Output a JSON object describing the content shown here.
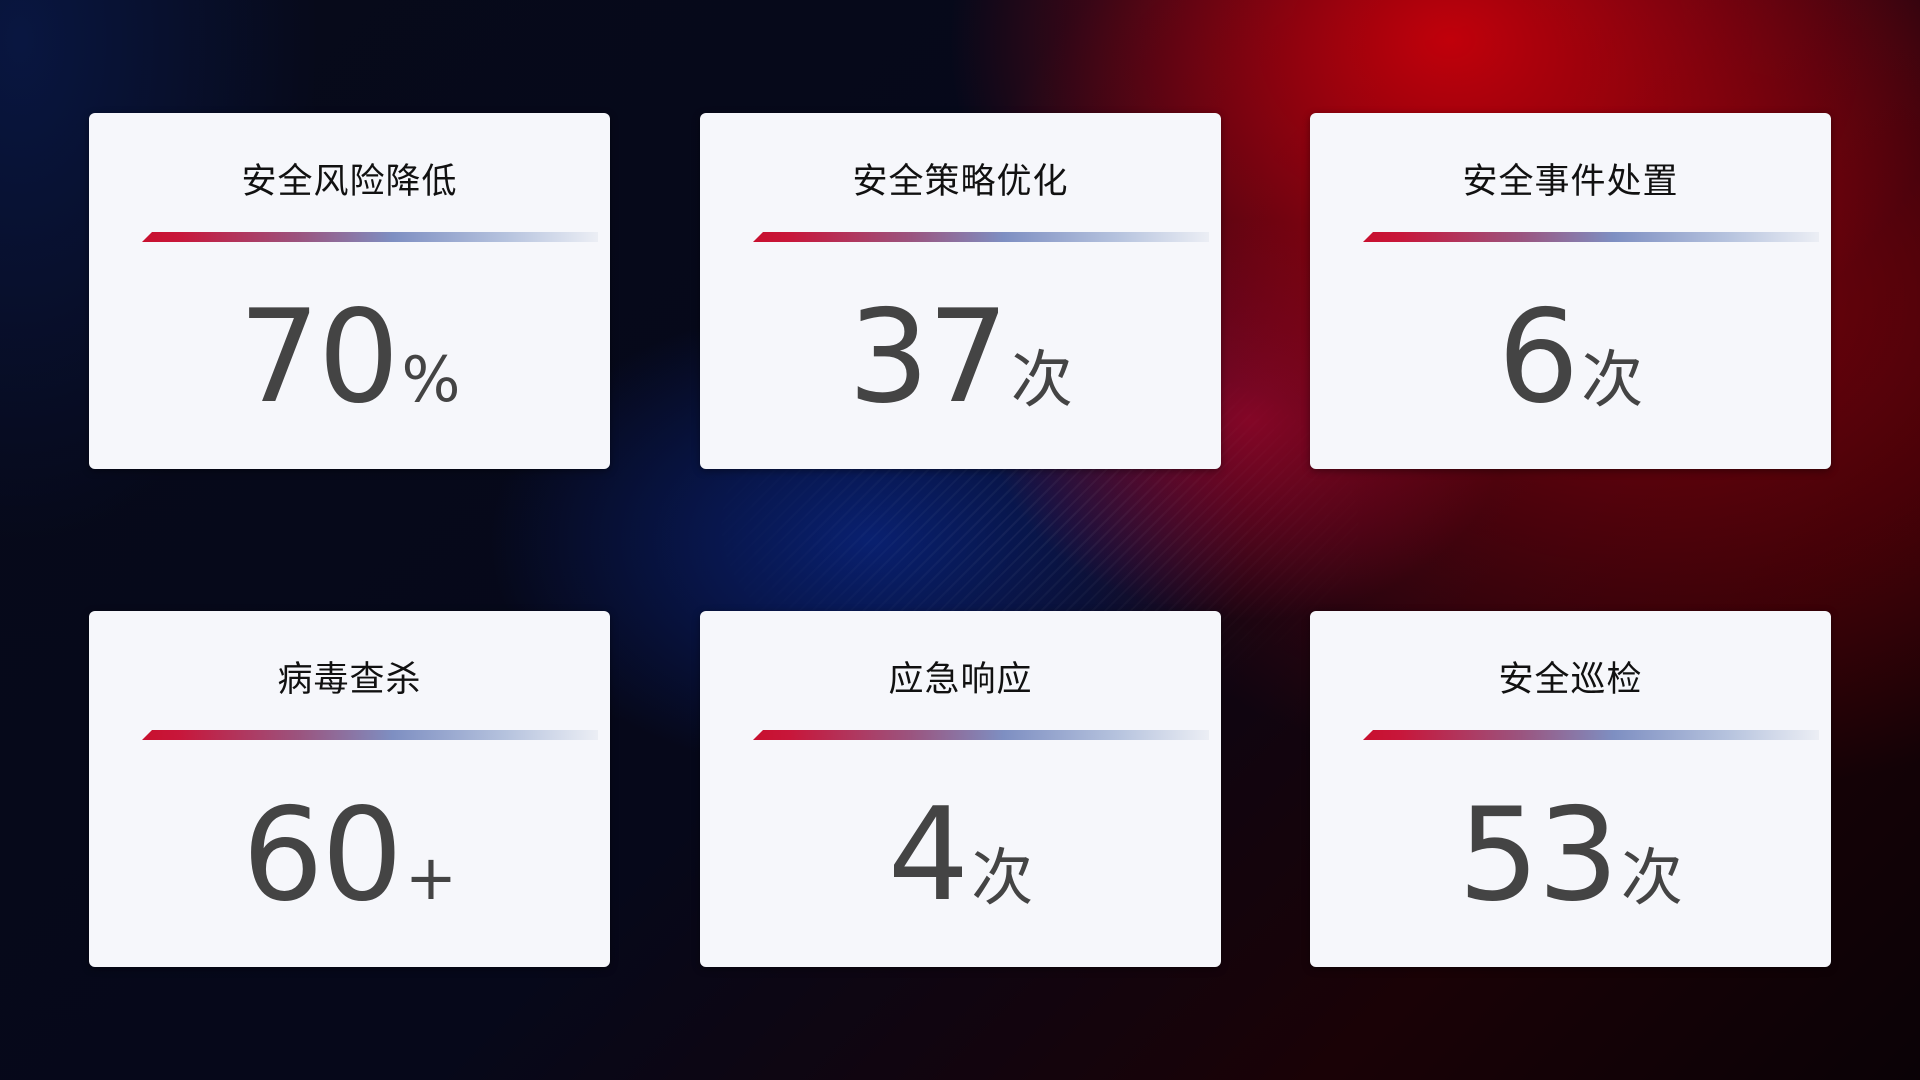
{
  "cards": [
    {
      "title": "安全风险降低",
      "value": "70",
      "unit": "%"
    },
    {
      "title": "安全策略优化",
      "value": "37",
      "unit": "次"
    },
    {
      "title": "安全事件处置",
      "value": "6",
      "unit": "次"
    },
    {
      "title": "病毒查杀",
      "value": "60",
      "unit": "+"
    },
    {
      "title": "应急响应",
      "value": "4",
      "unit": "次"
    },
    {
      "title": "安全巡检",
      "value": "53",
      "unit": "次"
    }
  ],
  "colors": {
    "accent_red": "#c8102e",
    "accent_blue": "#7e8fc2",
    "card_bg": "#f6f7fb",
    "value_text": "#444444"
  }
}
